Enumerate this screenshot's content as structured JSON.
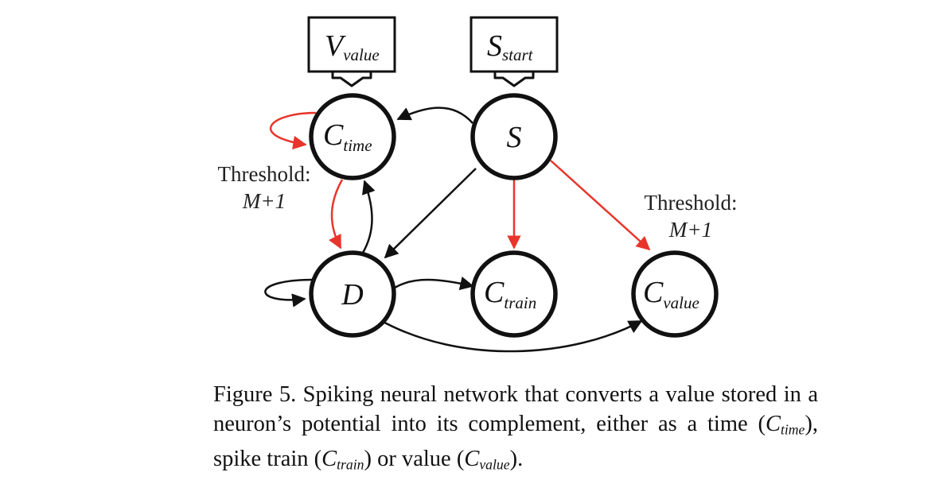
{
  "inputs": {
    "v_value": {
      "main": "V",
      "sub": "value"
    },
    "s_start": {
      "main": "S",
      "sub": "start"
    }
  },
  "nodes": {
    "c_time": {
      "main": "C",
      "sub": "time"
    },
    "s": {
      "main": "S",
      "sub": ""
    },
    "d": {
      "main": "D",
      "sub": ""
    },
    "c_train": {
      "main": "C",
      "sub": "train"
    },
    "c_value": {
      "main": "C",
      "sub": "value"
    }
  },
  "thresholds": {
    "left": {
      "line1": "Threshold:",
      "line2": "M+1"
    },
    "right": {
      "line1": "Threshold:",
      "line2": "M+1"
    }
  },
  "colors": {
    "black_edge": "#111111",
    "red_edge": "#e8352b"
  },
  "caption": {
    "part1": "Figure 5. Spiking neural network that converts a value stored in a neuron’s potential into its complement, either as a time (",
    "ctime_main": "C",
    "ctime_sub": "time",
    "part2": "), spike train (",
    "ctrain_main": "C",
    "ctrain_sub": "train",
    "part3": ") or value (",
    "cvalue_main": "C",
    "cvalue_sub": "value",
    "part4": ")."
  }
}
